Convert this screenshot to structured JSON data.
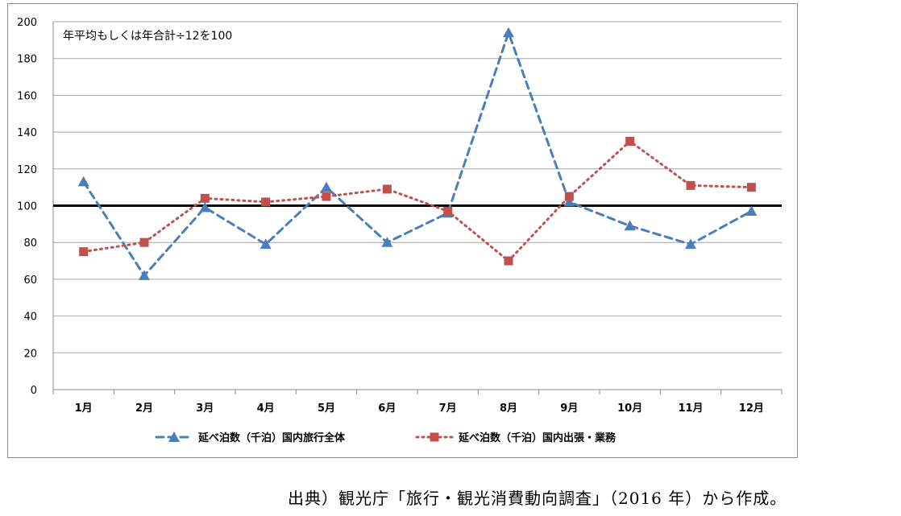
{
  "chart_data": {
    "type": "line",
    "annotation": "年平均もしくは年合計÷12を100",
    "categories": [
      "1月",
      "2月",
      "3月",
      "4月",
      "5月",
      "6月",
      "7月",
      "8月",
      "9月",
      "10月",
      "11月",
      "12月"
    ],
    "ylim": [
      0,
      200
    ],
    "yticks": [
      0,
      20,
      40,
      60,
      80,
      100,
      120,
      140,
      160,
      180,
      200
    ],
    "grid": true,
    "reference_line": 100,
    "legend_position": "bottom",
    "series": [
      {
        "name": "延べ泊数（千泊）国内旅行全体",
        "values": [
          113,
          62,
          99,
          79,
          110,
          80,
          96,
          194,
          102,
          89,
          79,
          97
        ],
        "color": "#4a7ebb",
        "marker": "triangle",
        "line_style": "dashed"
      },
      {
        "name": "延べ泊数（千泊）国内出張・業務",
        "values": [
          75,
          80,
          104,
          102,
          105,
          109,
          97,
          70,
          105,
          135,
          111,
          110
        ],
        "color": "#c0504d",
        "marker": "square",
        "line_style": "dotted"
      }
    ]
  },
  "source_note": "出典）観光庁「旅行・観光消費動向調査」（2016 年）から作成。"
}
